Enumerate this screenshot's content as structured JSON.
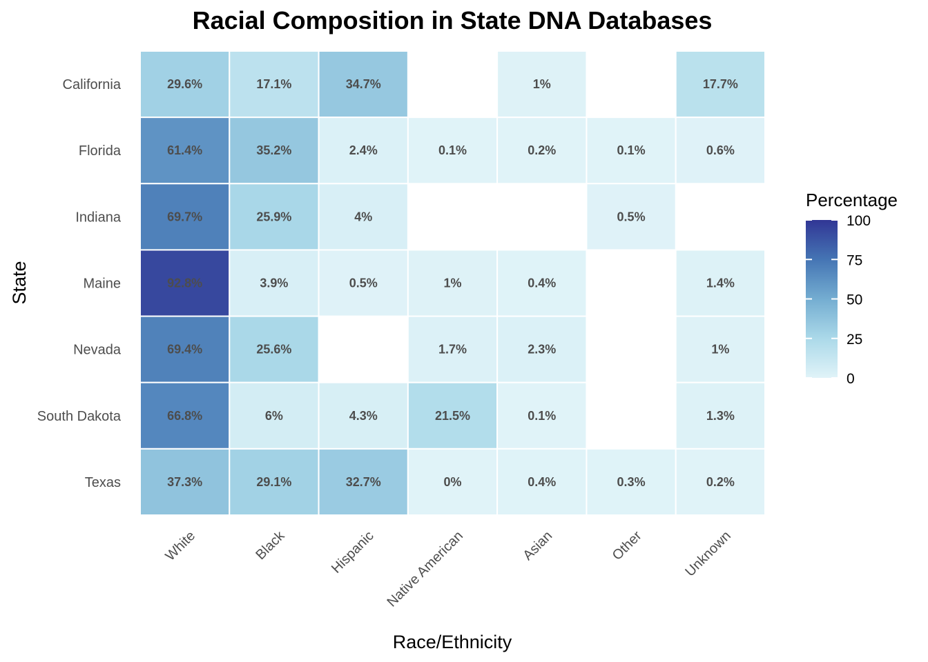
{
  "chart_data": {
    "type": "heatmap",
    "title": "Racial Composition in State DNA Databases",
    "xlabel": "Race/Ethnicity",
    "ylabel": "State",
    "x_categories": [
      "White",
      "Black",
      "Hispanic",
      "Native American",
      "Asian",
      "Other",
      "Unknown"
    ],
    "y_categories": [
      "California",
      "Florida",
      "Indiana",
      "Maine",
      "Nevada",
      "South Dakota",
      "Texas"
    ],
    "values": [
      [
        29.6,
        17.1,
        34.7,
        null,
        1,
        null,
        17.7
      ],
      [
        61.4,
        35.2,
        2.4,
        0.1,
        0.2,
        0.1,
        0.6
      ],
      [
        69.7,
        25.9,
        4,
        null,
        null,
        0.5,
        null
      ],
      [
        92.8,
        3.9,
        0.5,
        1,
        0.4,
        null,
        1.4
      ],
      [
        69.4,
        25.6,
        null,
        1.7,
        2.3,
        null,
        1
      ],
      [
        66.8,
        6,
        4.3,
        21.5,
        0.1,
        null,
        1.3
      ],
      [
        37.3,
        29.1,
        32.7,
        0,
        0.4,
        0.3,
        0.2
      ]
    ],
    "value_suffix": "%",
    "legend": {
      "title": "Percentage",
      "ticks": [
        0,
        25,
        50,
        75,
        100
      ],
      "range": [
        0,
        100
      ],
      "position": "right"
    },
    "color_scale": [
      "#e0f3f8",
      "#abd9e9",
      "#74add1",
      "#4575b4",
      "#313695"
    ]
  }
}
